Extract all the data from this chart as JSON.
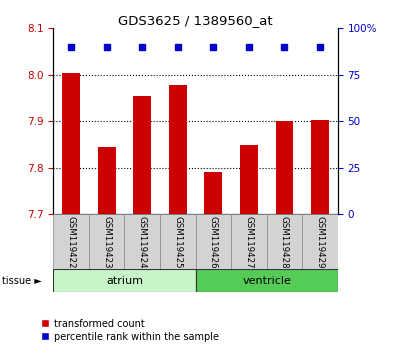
{
  "title": "GDS3625 / 1389560_at",
  "samples": [
    "GSM119422",
    "GSM119423",
    "GSM119424",
    "GSM119425",
    "GSM119426",
    "GSM119427",
    "GSM119428",
    "GSM119429"
  ],
  "transformed_counts": [
    8.003,
    7.845,
    7.955,
    7.978,
    7.79,
    7.848,
    7.9,
    7.902
  ],
  "percentile_ranks": [
    90,
    90,
    90,
    90,
    90,
    90,
    90,
    90
  ],
  "ylim_left": [
    7.7,
    8.1
  ],
  "ylim_right": [
    0,
    100
  ],
  "yticks_left": [
    7.7,
    7.8,
    7.9,
    8.0,
    8.1
  ],
  "yticks_right": [
    0,
    25,
    50,
    75,
    100
  ],
  "grid_lines": [
    7.8,
    7.9,
    8.0
  ],
  "tissue_groups": [
    {
      "label": "atrium",
      "start": 0,
      "end": 3,
      "color": "#c8f5c8"
    },
    {
      "label": "ventricle",
      "start": 4,
      "end": 7,
      "color": "#55cc55"
    }
  ],
  "bar_color": "#cc0000",
  "dot_color": "#0000cc",
  "bar_bottom": 7.7,
  "bar_width": 0.5,
  "label_transformed": "transformed count",
  "label_percentile": "percentile rank within the sample",
  "tissue_label": "tissue",
  "left_tick_color": "#cc0000",
  "right_tick_color": "#0000cc"
}
